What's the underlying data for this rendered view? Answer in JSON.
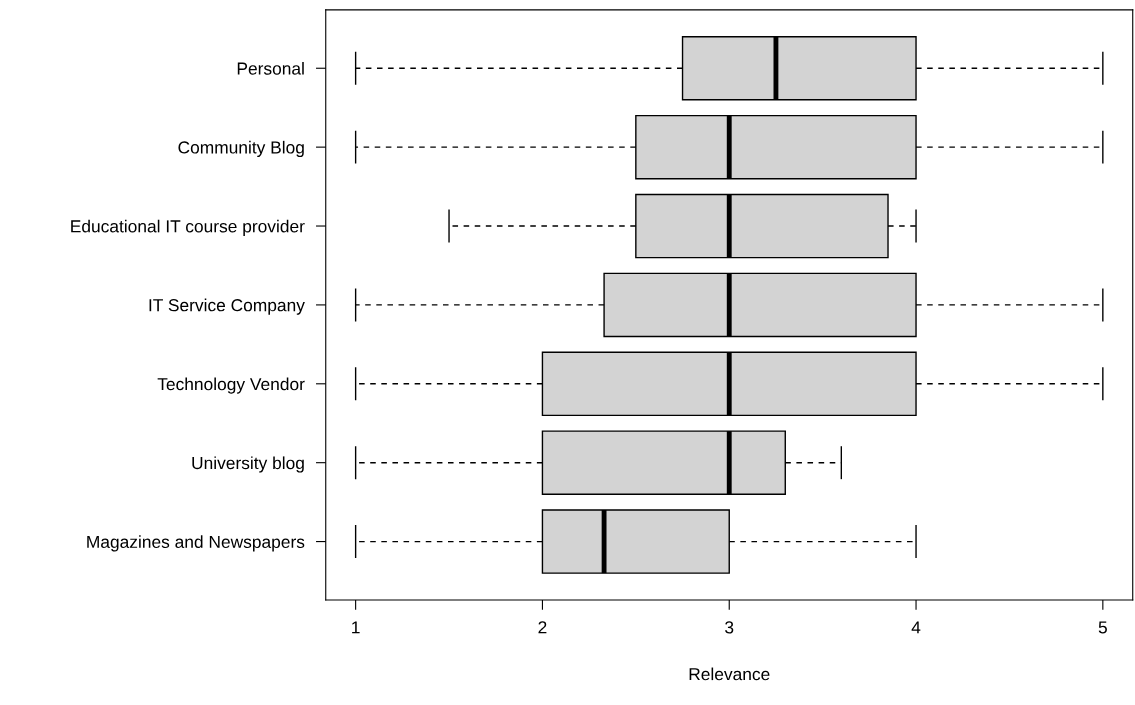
{
  "chart_data": {
    "type": "box",
    "orientation": "horizontal",
    "xlabel": "Relevance",
    "categories": [
      "Personal",
      "Community Blog",
      "Educational IT course provider",
      "IT Service Company",
      "Technology Vendor",
      "University blog",
      "Magazines and Newspapers"
    ],
    "boxes": [
      {
        "low": 1,
        "q1": 2.75,
        "median": 3.25,
        "q3": 4,
        "high": 5
      },
      {
        "low": 1,
        "q1": 2.5,
        "median": 3,
        "q3": 4,
        "high": 5
      },
      {
        "low": 1.5,
        "q1": 2.5,
        "median": 3,
        "q3": 3.85,
        "high": 4
      },
      {
        "low": 1,
        "q1": 2.33,
        "median": 3,
        "q3": 4,
        "high": 5
      },
      {
        "low": 1,
        "q1": 2,
        "median": 3,
        "q3": 4,
        "high": 5
      },
      {
        "low": 1,
        "q1": 2,
        "median": 3,
        "q3": 3.3,
        "high": 3.6
      },
      {
        "low": 1,
        "q1": 2,
        "median": 2.33,
        "q3": 3,
        "high": 4
      }
    ],
    "color": "#d3d3d3",
    "xlim": [
      0.84,
      5.16
    ],
    "xticks": [
      1,
      2,
      3,
      4,
      5
    ],
    "grid": false
  }
}
